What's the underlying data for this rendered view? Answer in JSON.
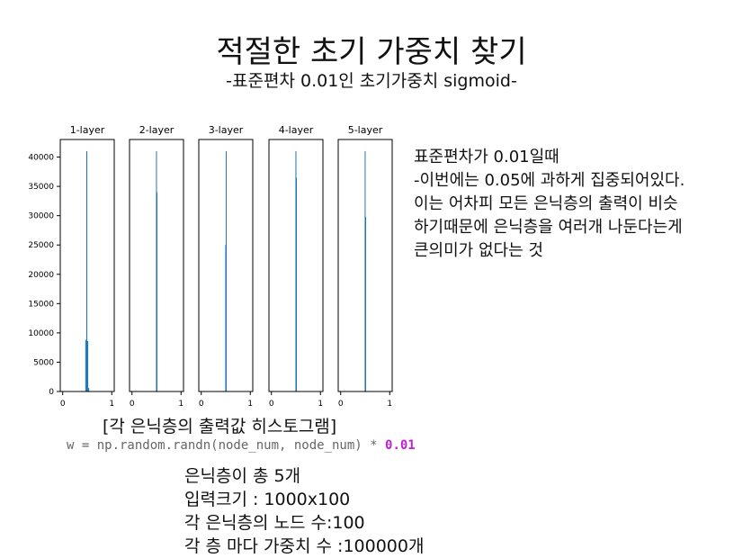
{
  "slide": {
    "title": "적절한 초기 가중치 찾기",
    "subtitle": "-표준편차 0.01인 초기가중치 sigmoid-"
  },
  "description": [
    "표준편차가 0.01일때",
    "-이번에는 0.05에 과하게 집중되어있다.",
    "이는 어차피 모든 은닉층의 출력이 비슷",
    "하기때문에 은닉층을 여러개 나둔다는게",
    "큰의미가 없다는 것"
  ],
  "caption": "[각 은닉층의 출력값 히스토그램]",
  "code": {
    "prefix": "w = np.random.randn(node_num, node_num) * ",
    "value": "0.01"
  },
  "facts": [
    "은닉층이 총 5개",
    "입력크기 : 1000x100",
    "각 은닉층의 노드 수:100",
    "각 층 마다 가중치 수 :100000개"
  ],
  "chart_data": {
    "type": "bar",
    "bar_color": "#1f77b4",
    "ylim": [
      0,
      43000
    ],
    "xlim": [
      -0.05,
      1.05
    ],
    "x_ticks": [
      0,
      1
    ],
    "y_ticks": [
      0,
      5000,
      10000,
      15000,
      20000,
      25000,
      30000,
      35000,
      40000
    ],
    "panels": [
      {
        "title": "1-layer",
        "bins": [
          {
            "x": 0.47,
            "w": 0.02,
            "v": 8800
          },
          {
            "x": 0.49,
            "w": 0.02,
            "v": 41000
          },
          {
            "x": 0.51,
            "w": 0.02,
            "v": 8600
          },
          {
            "x": 0.53,
            "w": 0.02,
            "v": 600
          }
        ]
      },
      {
        "title": "2-layer",
        "bins": [
          {
            "x": 0.495,
            "w": 0.01,
            "v": 41000
          },
          {
            "x": 0.505,
            "w": 0.01,
            "v": 34000
          }
        ]
      },
      {
        "title": "3-layer",
        "bins": [
          {
            "x": 0.495,
            "w": 0.01,
            "v": 25000
          },
          {
            "x": 0.505,
            "w": 0.01,
            "v": 41000
          }
        ]
      },
      {
        "title": "4-layer",
        "bins": [
          {
            "x": 0.495,
            "w": 0.01,
            "v": 41000
          },
          {
            "x": 0.505,
            "w": 0.01,
            "v": 36500
          }
        ]
      },
      {
        "title": "5-layer",
        "bins": [
          {
            "x": 0.495,
            "w": 0.01,
            "v": 41000
          },
          {
            "x": 0.505,
            "w": 0.01,
            "v": 29800
          }
        ]
      }
    ]
  }
}
